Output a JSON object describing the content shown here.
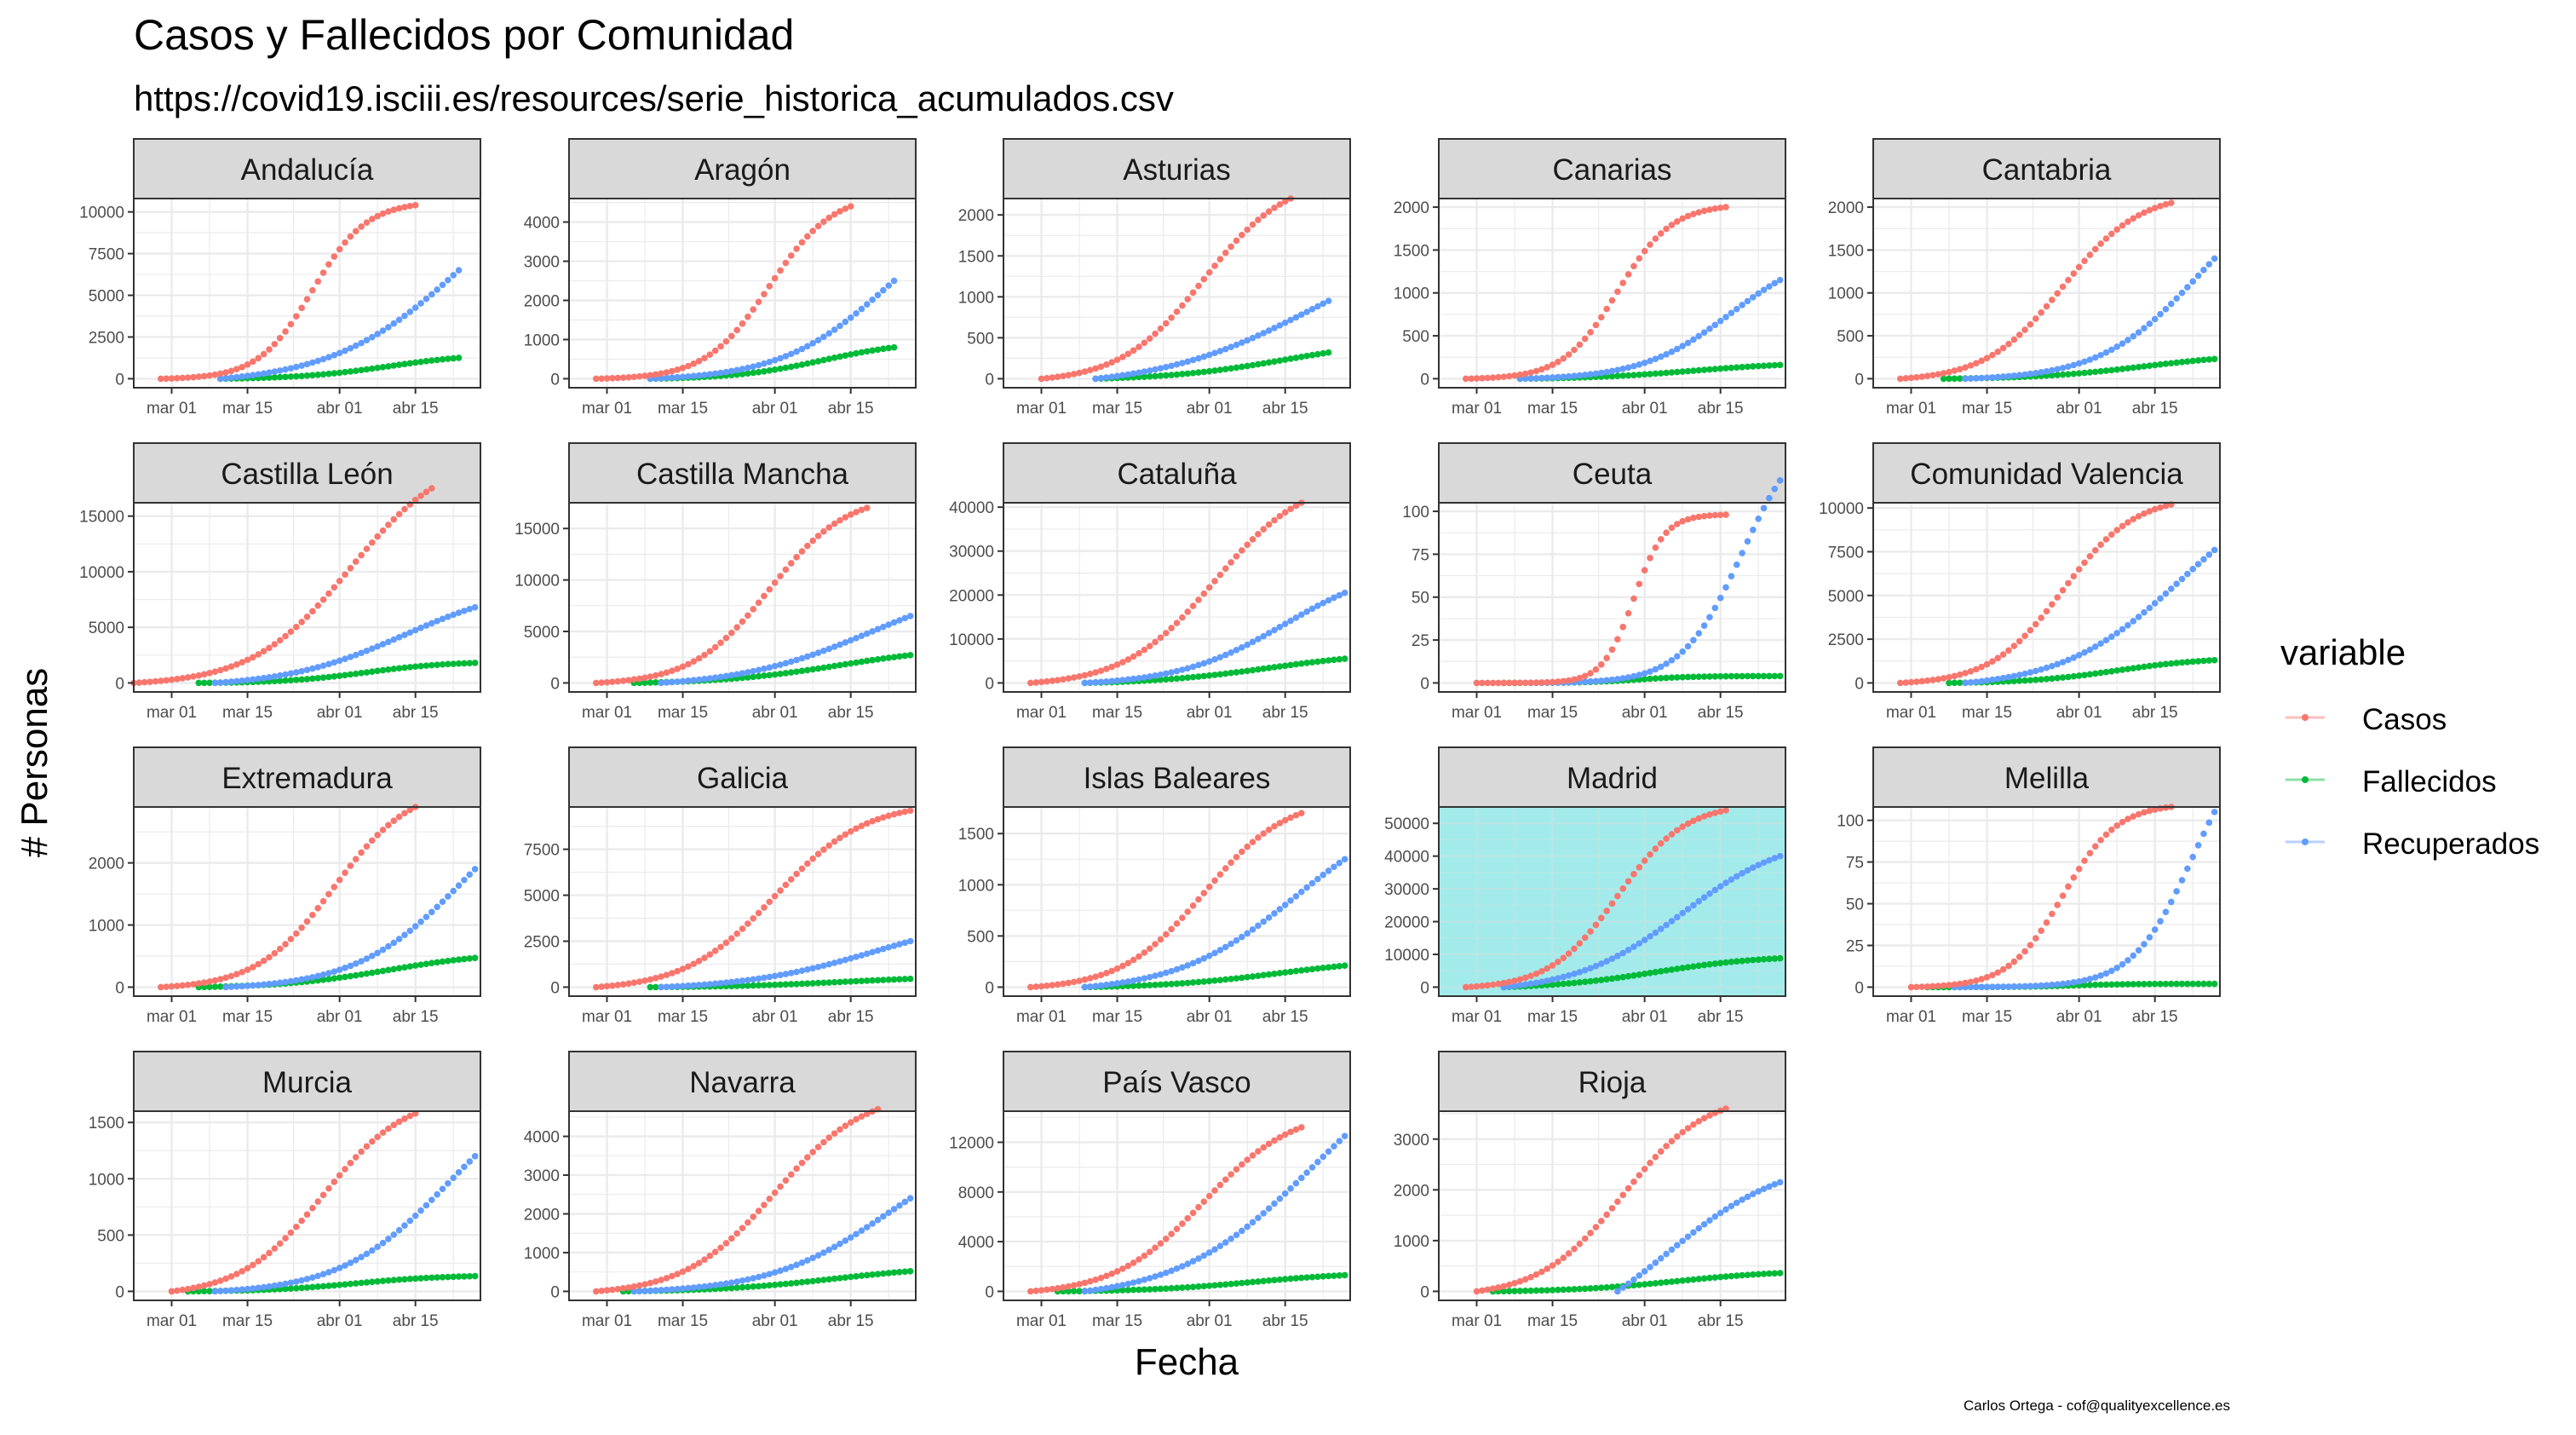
{
  "title": "Casos y Fallecidos por Comunidad",
  "subtitle": "https://covid19.isciii.es/resources/serie_historica_acumulados.csv",
  "caption": "Carlos Ortega - cof@qualityexcellence.es",
  "chart_data": {
    "type": "scatter",
    "xlabel": "Fecha",
    "ylabel": "# Personas",
    "x_ticks": [
      "mar 01",
      "mar 15",
      "abr 01",
      "abr 15"
    ],
    "x_tick_days": [
      0,
      14,
      31,
      45
    ],
    "x_range_days": [
      -7,
      57
    ],
    "legend": {
      "title": "variable",
      "position": "right",
      "entries": [
        {
          "name": "Casos",
          "color": "#F8766D"
        },
        {
          "name": "Fallecidos",
          "color": "#00BA38"
        },
        {
          "name": "Recuperados",
          "color": "#619CFF"
        }
      ]
    },
    "grid": true,
    "highlight": {
      "panel": "Madrid",
      "color": "#A3EBEB"
    },
    "panels": [
      {
        "name": "Andalucía",
        "yticks": [
          0,
          2500,
          5000,
          7500,
          10000
        ],
        "ymax": 10800,
        "series": {
          "Casos": {
            "start": -2,
            "end": 45,
            "final": 10400,
            "mid": 26,
            "k": 0.2
          },
          "Fallecidos": {
            "start": 9,
            "end": 53,
            "final": 1250,
            "mid": 40,
            "k": 0.12
          },
          "Recuperados": {
            "start": 9,
            "end": 53,
            "final": 6500,
            "mid": 55,
            "k": 0.08
          }
        }
      },
      {
        "name": "Aragón",
        "yticks": [
          0,
          1000,
          2000,
          3000,
          4000
        ],
        "ymax": 4600,
        "series": {
          "Casos": {
            "start": -2,
            "end": 45,
            "final": 4400,
            "mid": 30,
            "k": 0.17
          },
          "Fallecidos": {
            "start": 8,
            "end": 53,
            "final": 800,
            "mid": 40,
            "k": 0.12
          },
          "Recuperados": {
            "start": 8,
            "end": 53,
            "final": 2500,
            "mid": 52,
            "k": 0.1
          }
        }
      },
      {
        "name": "Asturias",
        "yticks": [
          0,
          500,
          1000,
          1500,
          2000
        ],
        "ymax": 2200,
        "series": {
          "Casos": {
            "start": 0,
            "end": 46,
            "final": 2200,
            "mid": 30,
            "k": 0.13
          },
          "Fallecidos": {
            "start": 10,
            "end": 53,
            "final": 320,
            "mid": 45,
            "k": 0.09
          },
          "Recuperados": {
            "start": 10,
            "end": 53,
            "final": 950,
            "mid": 50,
            "k": 0.07
          }
        }
      },
      {
        "name": "Canarias",
        "yticks": [
          0,
          500,
          1000,
          1500,
          2000
        ],
        "ymax": 2100,
        "series": {
          "Casos": {
            "start": -2,
            "end": 46,
            "final": 2000,
            "mid": 26,
            "k": 0.2
          },
          "Fallecidos": {
            "start": 8,
            "end": 56,
            "final": 160,
            "mid": 40,
            "k": 0.1
          },
          "Recuperados": {
            "start": 8,
            "end": 56,
            "final": 1150,
            "mid": 47,
            "k": 0.12
          }
        }
      },
      {
        "name": "Cantabria",
        "yticks": [
          0,
          500,
          1000,
          1500,
          2000
        ],
        "ymax": 2100,
        "series": {
          "Casos": {
            "start": -2,
            "end": 48,
            "final": 2050,
            "mid": 28,
            "k": 0.14
          },
          "Fallecidos": {
            "start": 6,
            "end": 56,
            "final": 230,
            "mid": 43,
            "k": 0.1
          },
          "Recuperados": {
            "start": 10,
            "end": 56,
            "final": 1400,
            "mid": 53,
            "k": 0.11
          }
        }
      },
      {
        "name": "Castilla León",
        "yticks": [
          0,
          5000,
          10000,
          15000
        ],
        "ymax": 16200,
        "series": {
          "Casos": {
            "start": -7,
            "end": 48,
            "final": 17500,
            "mid": 33,
            "k": 0.11
          },
          "Fallecidos": {
            "start": 5,
            "end": 56,
            "final": 1800,
            "mid": 36,
            "k": 0.13
          },
          "Recuperados": {
            "start": 8,
            "end": 56,
            "final": 6800,
            "mid": 43,
            "k": 0.09
          }
        }
      },
      {
        "name": "Castilla Mancha",
        "yticks": [
          0,
          5000,
          10000,
          15000
        ],
        "ymax": 17500,
        "series": {
          "Casos": {
            "start": -2,
            "end": 48,
            "final": 17000,
            "mid": 30,
            "k": 0.14
          },
          "Fallecidos": {
            "start": 5,
            "end": 56,
            "final": 2700,
            "mid": 43,
            "k": 0.09
          },
          "Recuperados": {
            "start": 10,
            "end": 56,
            "final": 6500,
            "mid": 49,
            "k": 0.08
          }
        }
      },
      {
        "name": "Cataluña",
        "yticks": [
          0,
          10000,
          20000,
          30000,
          40000
        ],
        "ymax": 41000,
        "series": {
          "Casos": {
            "start": -2,
            "end": 48,
            "final": 41000,
            "mid": 32,
            "k": 0.12
          },
          "Fallecidos": {
            "start": 8,
            "end": 56,
            "final": 5500,
            "mid": 42,
            "k": 0.09
          },
          "Recuperados": {
            "start": 8,
            "end": 56,
            "final": 20500,
            "mid": 45,
            "k": 0.1
          }
        }
      },
      {
        "name": "Ceuta",
        "yticks": [
          0,
          25,
          50,
          75,
          100
        ],
        "ymax": 105,
        "series": {
          "Casos": {
            "start": 0,
            "end": 46,
            "final": 98,
            "mid": 29,
            "k": 0.35
          },
          "Fallecidos": {
            "start": 5,
            "end": 56,
            "final": 4,
            "mid": 30,
            "k": 0.2
          },
          "Recuperados": {
            "start": 10,
            "end": 56,
            "final": 118,
            "mid": 49,
            "k": 0.18
          }
        }
      },
      {
        "name": "Comunidad Valencia",
        "yticks": [
          0,
          2500,
          5000,
          7500,
          10000
        ],
        "ymax": 10300,
        "series": {
          "Casos": {
            "start": -2,
            "end": 48,
            "final": 10200,
            "mid": 28,
            "k": 0.15
          },
          "Fallecidos": {
            "start": 7,
            "end": 56,
            "final": 1300,
            "mid": 38,
            "k": 0.12
          },
          "Recuperados": {
            "start": 10,
            "end": 56,
            "final": 7600,
            "mid": 50,
            "k": 0.09
          }
        }
      },
      {
        "name": "Extremadura",
        "yticks": [
          0,
          1000,
          2000
        ],
        "ymax": 2900,
        "series": {
          "Casos": {
            "start": -2,
            "end": 45,
            "final": 2900,
            "mid": 30,
            "k": 0.14
          },
          "Fallecidos": {
            "start": 5,
            "end": 56,
            "final": 470,
            "mid": 40,
            "k": 0.1
          },
          "Recuperados": {
            "start": 10,
            "end": 56,
            "final": 1900,
            "mid": 54,
            "k": 0.1
          }
        }
      },
      {
        "name": "Galicia",
        "yticks": [
          0,
          2500,
          5000,
          7500
        ],
        "ymax": 9800,
        "series": {
          "Casos": {
            "start": -2,
            "end": 56,
            "final": 9600,
            "mid": 31,
            "k": 0.12
          },
          "Fallecidos": {
            "start": 8,
            "end": 56,
            "final": 450,
            "mid": 44,
            "k": 0.09
          },
          "Recuperados": {
            "start": 10,
            "end": 56,
            "final": 2500,
            "mid": 50,
            "k": 0.08
          }
        }
      },
      {
        "name": "Islas Baleares",
        "yticks": [
          0,
          500,
          1000,
          1500
        ],
        "ymax": 1760,
        "series": {
          "Casos": {
            "start": -2,
            "end": 48,
            "final": 1700,
            "mid": 30,
            "k": 0.13
          },
          "Fallecidos": {
            "start": 8,
            "end": 56,
            "final": 210,
            "mid": 44,
            "k": 0.09
          },
          "Recuperados": {
            "start": 8,
            "end": 56,
            "final": 1250,
            "mid": 47,
            "k": 0.09
          }
        }
      },
      {
        "name": "Madrid",
        "yticks": [
          0,
          10000,
          20000,
          30000,
          40000,
          50000
        ],
        "ymax": 55000,
        "series": {
          "Casos": {
            "start": -2,
            "end": 46,
            "final": 54000,
            "mid": 26,
            "k": 0.16
          },
          "Fallecidos": {
            "start": 5,
            "end": 56,
            "final": 8800,
            "mid": 33,
            "k": 0.1
          },
          "Recuperados": {
            "start": 5,
            "end": 56,
            "final": 40000,
            "mid": 38,
            "k": 0.1
          }
        }
      },
      {
        "name": "Melilla",
        "yticks": [
          0,
          25,
          50,
          75,
          100
        ],
        "ymax": 108,
        "series": {
          "Casos": {
            "start": 0,
            "end": 48,
            "final": 108,
            "mid": 28,
            "k": 0.2
          },
          "Fallecidos": {
            "start": 3,
            "end": 56,
            "final": 2,
            "mid": 30,
            "k": 0.2
          },
          "Recuperados": {
            "start": 8,
            "end": 56,
            "final": 105,
            "mid": 52,
            "k": 0.18
          }
        }
      },
      {
        "name": "Murcia",
        "yticks": [
          0,
          500,
          1000,
          1500
        ],
        "ymax": 1600,
        "series": {
          "Casos": {
            "start": 0,
            "end": 45,
            "final": 1580,
            "mid": 28,
            "k": 0.13
          },
          "Fallecidos": {
            "start": 3,
            "end": 56,
            "final": 135,
            "mid": 34,
            "k": 0.12
          },
          "Recuperados": {
            "start": 8,
            "end": 56,
            "final": 1200,
            "mid": 51,
            "k": 0.1
          }
        }
      },
      {
        "name": "Navarra",
        "yticks": [
          0,
          1000,
          2000,
          3000,
          4000
        ],
        "ymax": 4650,
        "series": {
          "Casos": {
            "start": -2,
            "end": 50,
            "final": 4700,
            "mid": 31,
            "k": 0.12
          },
          "Fallecidos": {
            "start": 3,
            "end": 56,
            "final": 520,
            "mid": 42,
            "k": 0.09
          },
          "Recuperados": {
            "start": 5,
            "end": 56,
            "final": 2400,
            "mid": 52,
            "k": 0.09
          }
        }
      },
      {
        "name": "País Vasco",
        "yticks": [
          0,
          4000,
          8000,
          12000
        ],
        "ymax": 14500,
        "series": {
          "Casos": {
            "start": -2,
            "end": 48,
            "final": 13200,
            "mid": 30,
            "k": 0.12
          },
          "Fallecidos": {
            "start": 3,
            "end": 56,
            "final": 1300,
            "mid": 39,
            "k": 0.1
          },
          "Recuperados": {
            "start": 8,
            "end": 56,
            "final": 12500,
            "mid": 50,
            "k": 0.08
          }
        }
      },
      {
        "name": "Rioja",
        "yticks": [
          0,
          1000,
          2000,
          3000
        ],
        "ymax": 3550,
        "series": {
          "Casos": {
            "start": 0,
            "end": 46,
            "final": 3600,
            "mid": 27,
            "k": 0.13
          },
          "Fallecidos": {
            "start": 3,
            "end": 56,
            "final": 360,
            "mid": 37,
            "k": 0.1
          },
          "Recuperados": {
            "start": 26,
            "end": 56,
            "final": 2150,
            "mid": 35,
            "k": 0.09
          }
        }
      }
    ]
  }
}
